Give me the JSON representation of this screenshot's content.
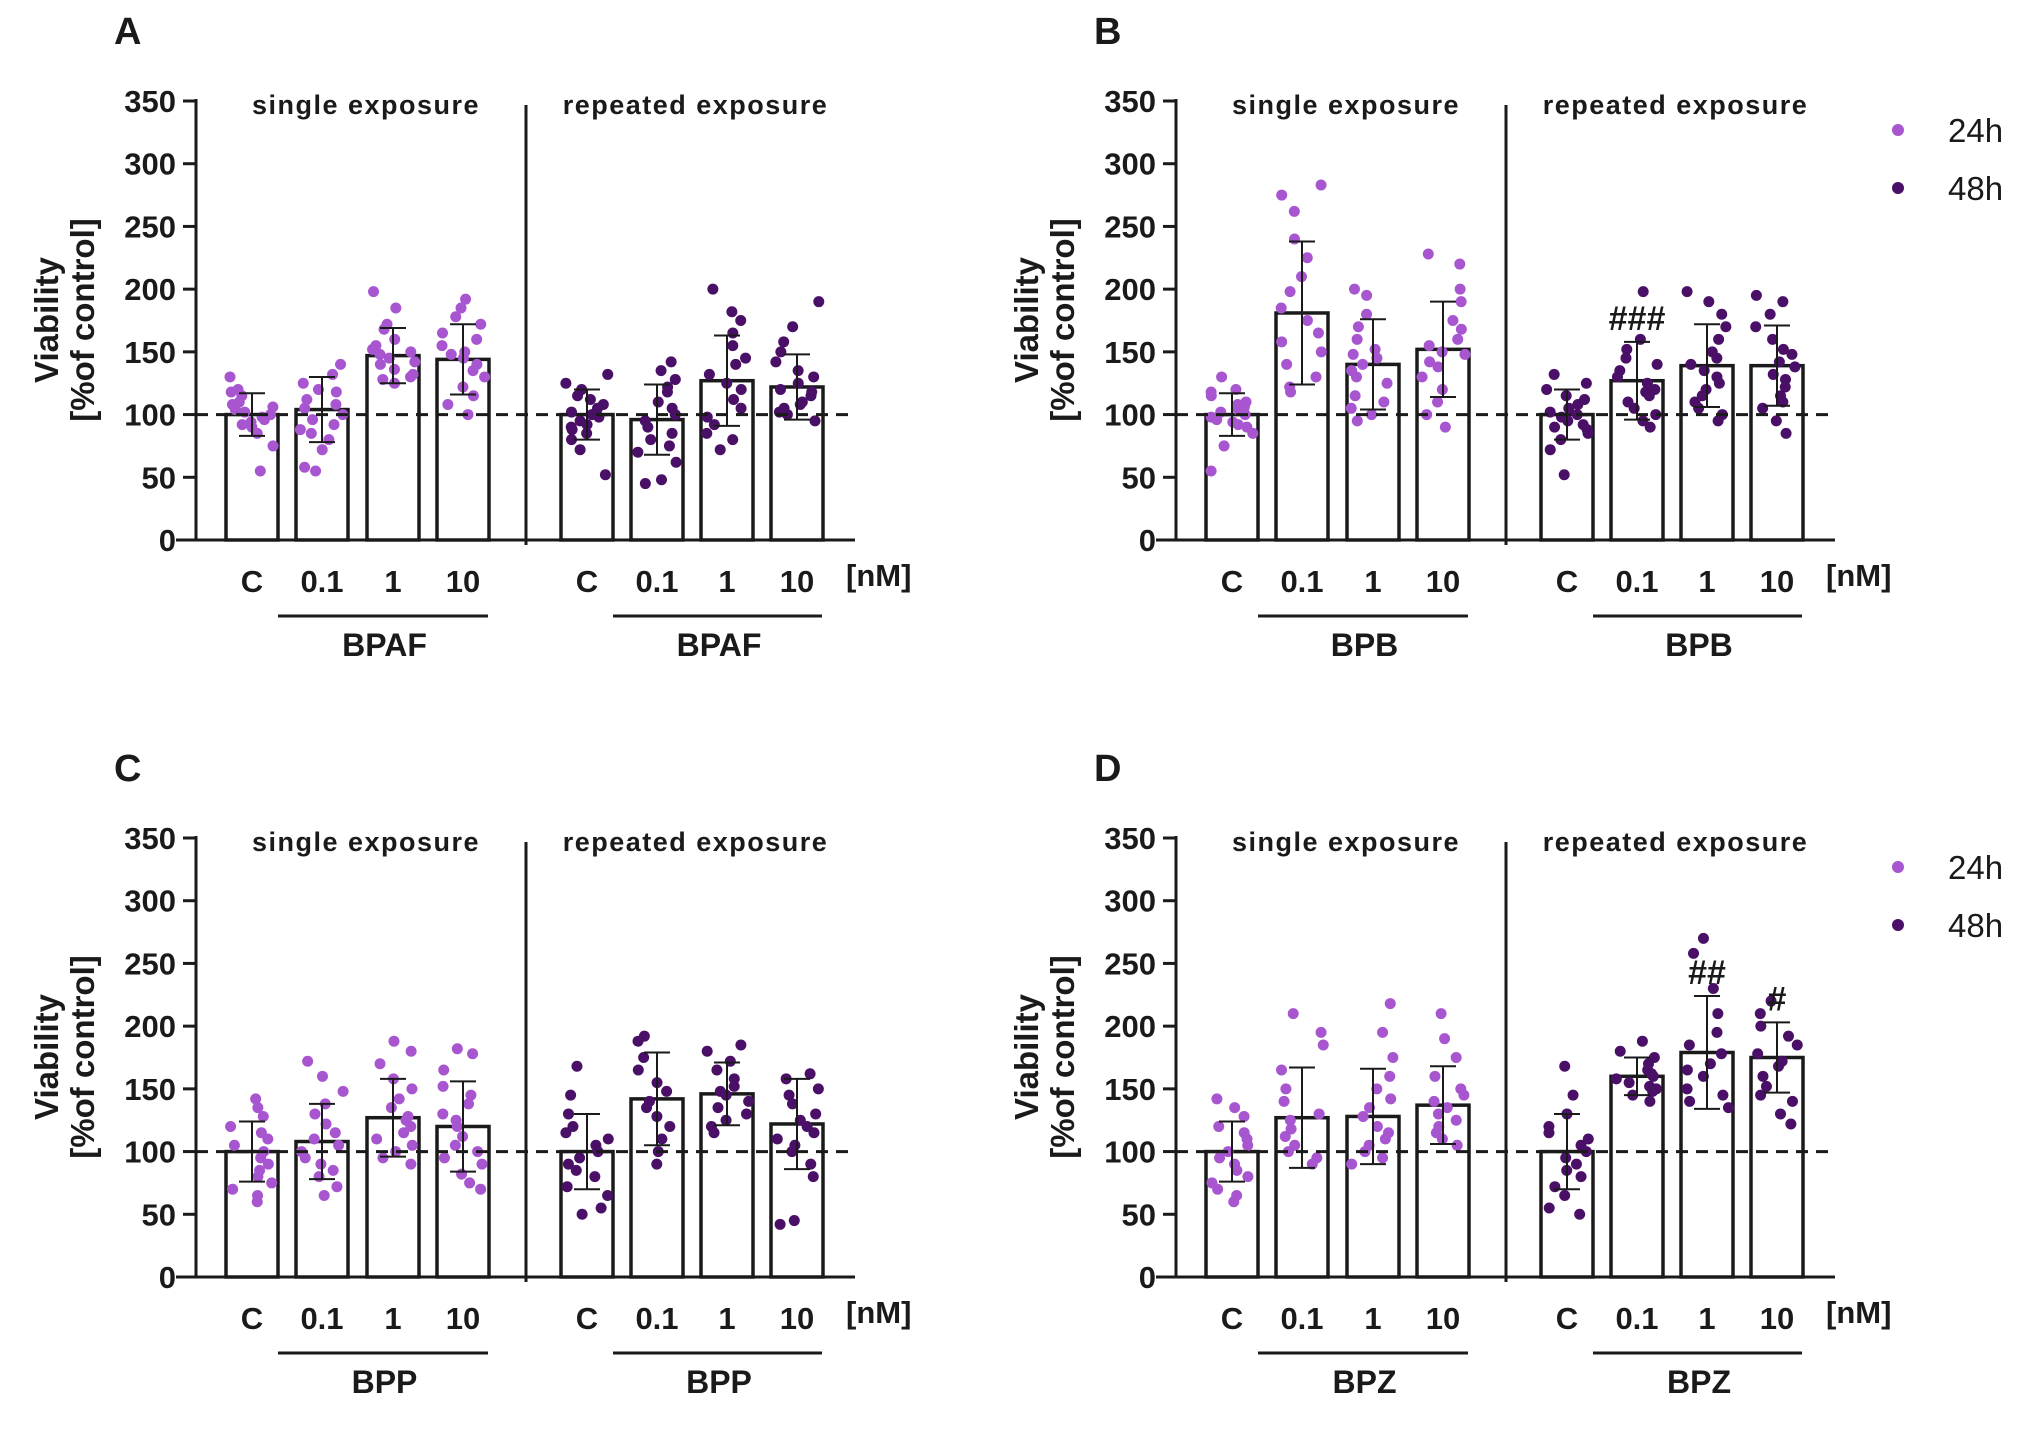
{
  "figure": {
    "legend": [
      {
        "label": "24h",
        "color": "#a855d0"
      },
      {
        "label": "48h",
        "color": "#4a0f66"
      }
    ]
  },
  "chart_data": [
    {
      "type": "bar",
      "panel": "A",
      "ylabel_line1": "Viability",
      "ylabel_line2": "[%of control]",
      "ylim": [
        0,
        350
      ],
      "yticks": [
        "0",
        "50",
        "100",
        "150",
        "200",
        "250",
        "300",
        "350"
      ],
      "unit": "[nM]",
      "reference_line": 100,
      "sections": [
        {
          "title": "single exposure",
          "group": "BPAF",
          "timepoint": "24h",
          "categories": [
            "C",
            "0.1",
            "1",
            "10"
          ],
          "means": [
            100,
            104,
            147,
            144
          ],
          "sd": [
            17,
            26,
            22,
            28
          ],
          "sig": [
            "",
            "",
            "",
            ""
          ],
          "points": [
            [
              130,
              120,
              118,
              115,
              110,
              108,
              106,
              104,
              102,
              100,
              98,
              96,
              94,
              92,
              90,
              85,
              75,
              55
            ],
            [
              140,
              132,
              125,
              120,
              118,
              112,
              108,
              105,
              100,
              96,
              92,
              88,
              85,
              80,
              72,
              58,
              55
            ],
            [
              198,
              185,
              172,
              168,
              160,
              155,
              152,
              150,
              148,
              145,
              142,
              140,
              136,
              132,
              130,
              128,
              125
            ],
            [
              192,
              185,
              178,
              172,
              165,
              160,
              155,
              150,
              148,
              145,
              140,
              135,
              130,
              122,
              115,
              108,
              100
            ]
          ]
        },
        {
          "title": "repeated exposure",
          "group": "BPAF",
          "timepoint": "48h",
          "categories": [
            "C",
            "0.1",
            "1",
            "10"
          ],
          "means": [
            100,
            96,
            127,
            122
          ],
          "sd": [
            20,
            28,
            36,
            26
          ],
          "sig": [
            "",
            "",
            "",
            ""
          ],
          "points": [
            [
              132,
              125,
              120,
              115,
              112,
              108,
              105,
              102,
              100,
              98,
              95,
              92,
              90,
              88,
              85,
              80,
              72,
              52
            ],
            [
              142,
              135,
              128,
              122,
              118,
              110,
              105,
              100,
              95,
              90,
              85,
              80,
              75,
              70,
              62,
              48,
              45
            ],
            [
              200,
              182,
              175,
              165,
              155,
              145,
              140,
              132,
              125,
              120,
              112,
              105,
              98,
              92,
              85,
              80,
              72
            ],
            [
              190,
              170,
              158,
              150,
              142,
              135,
              130,
              125,
              120,
              118,
              115,
              110,
              108,
              105,
              102,
              100,
              95
            ]
          ]
        }
      ]
    },
    {
      "type": "bar",
      "panel": "B",
      "ylabel_line1": "Viability",
      "ylabel_line2": "[%of control]",
      "ylim": [
        0,
        350
      ],
      "yticks": [
        "0",
        "50",
        "100",
        "150",
        "200",
        "250",
        "300",
        "350"
      ],
      "unit": "[nM]",
      "reference_line": 100,
      "sections": [
        {
          "title": "single exposure",
          "group": "BPB",
          "timepoint": "24h",
          "categories": [
            "C",
            "0.1",
            "1",
            "10"
          ],
          "means": [
            100,
            181,
            140,
            152
          ],
          "sd": [
            17,
            57,
            36,
            38
          ],
          "sig": [
            "",
            "",
            "",
            ""
          ],
          "points": [
            [
              130,
              120,
              118,
              115,
              110,
              108,
              106,
              104,
              102,
              100,
              98,
              96,
              94,
              92,
              90,
              85,
              75,
              55
            ],
            [
              283,
              275,
              262,
              240,
              225,
              210,
              198,
              185,
              175,
              165,
              158,
              150,
              140,
              130,
              122,
              118
            ],
            [
              200,
              195,
              180,
              170,
              160,
              152,
              148,
              145,
              140,
              135,
              130,
              125,
              115,
              110,
              105,
              100,
              95
            ],
            [
              228,
              220,
              200,
              190,
              175,
              168,
              160,
              155,
              150,
              148,
              142,
              138,
              130,
              120,
              110,
              100,
              90
            ]
          ]
        },
        {
          "title": "repeated exposure",
          "group": "BPB",
          "timepoint": "48h",
          "categories": [
            "C",
            "0.1",
            "1",
            "10"
          ],
          "means": [
            100,
            127,
            139,
            139
          ],
          "sd": [
            20,
            31,
            33,
            32
          ],
          "sig": [
            "",
            "###",
            "",
            ""
          ],
          "points": [
            [
              132,
              125,
              120,
              115,
              112,
              108,
              105,
              102,
              100,
              98,
              95,
              92,
              90,
              88,
              85,
              80,
              72,
              52
            ],
            [
              198,
              160,
              152,
              145,
              140,
              135,
              130,
              125,
              120,
              118,
              115,
              110,
              105,
              100,
              95,
              90
            ],
            [
              198,
              190,
              180,
              170,
              160,
              150,
              145,
              140,
              135,
              130,
              125,
              120,
              115,
              110,
              105,
              100,
              95
            ],
            [
              195,
              190,
              180,
              170,
              160,
              152,
              148,
              142,
              138,
              132,
              128,
              122,
              115,
              110,
              105,
              95,
              85
            ]
          ]
        }
      ]
    },
    {
      "type": "bar",
      "panel": "C",
      "ylabel_line1": "Viability",
      "ylabel_line2": "[%of control]",
      "ylim": [
        0,
        350
      ],
      "yticks": [
        "0",
        "50",
        "100",
        "150",
        "200",
        "250",
        "300",
        "350"
      ],
      "unit": "[nM]",
      "reference_line": 100,
      "sections": [
        {
          "title": "single exposure",
          "group": "BPP",
          "timepoint": "24h",
          "categories": [
            "C",
            "0.1",
            "1",
            "10"
          ],
          "means": [
            100,
            108,
            127,
            120
          ],
          "sd": [
            24,
            30,
            31,
            36
          ],
          "sig": [
            "",
            "",
            "",
            ""
          ],
          "points": [
            [
              142,
              135,
              128,
              120,
              115,
              110,
              105,
              100,
              95,
              90,
              85,
              80,
              75,
              70,
              65,
              60
            ],
            [
              172,
              160,
              148,
              138,
              130,
              122,
              115,
              110,
              105,
              100,
              95,
              90,
              85,
              80,
              72,
              65
            ],
            [
              188,
              180,
              170,
              158,
              150,
              142,
              135,
              128,
              125,
              120,
              115,
              110,
              105,
              100,
              95,
              90
            ],
            [
              182,
              178,
              165,
              152,
              145,
              138,
              130,
              125,
              120,
              112,
              105,
              100,
              95,
              90,
              82,
              75,
              70
            ]
          ]
        },
        {
          "title": "repeated exposure",
          "group": "BPP",
          "timepoint": "48h",
          "categories": [
            "C",
            "0.1",
            "1",
            "10"
          ],
          "means": [
            100,
            142,
            146,
            122
          ],
          "sd": [
            30,
            37,
            25,
            36
          ],
          "sig": [
            "",
            "",
            "",
            ""
          ],
          "points": [
            [
              168,
              145,
              130,
              120,
              115,
              110,
              105,
              100,
              95,
              90,
              85,
              80,
              72,
              65,
              55,
              50
            ],
            [
              192,
              188,
              175,
              165,
              155,
              148,
              140,
              135,
              128,
              120,
              110,
              100,
              90
            ],
            [
              185,
              180,
              172,
              165,
              158,
              152,
              148,
              145,
              140,
              135,
              130,
              125,
              120,
              115
            ],
            [
              162,
              158,
              150,
              145,
              138,
              130,
              125,
              120,
              115,
              110,
              105,
              100,
              90,
              80,
              45,
              42
            ]
          ]
        }
      ]
    },
    {
      "type": "bar",
      "panel": "D",
      "ylabel_line1": "Viability",
      "ylabel_line2": "[%of control]",
      "ylim": [
        0,
        350
      ],
      "yticks": [
        "0",
        "50",
        "100",
        "150",
        "200",
        "250",
        "300",
        "350"
      ],
      "unit": "[nM]",
      "reference_line": 100,
      "sections": [
        {
          "title": "single exposure",
          "group": "BPZ",
          "timepoint": "24h",
          "categories": [
            "C",
            "0.1",
            "1",
            "10"
          ],
          "means": [
            100,
            127,
            128,
            137
          ],
          "sd": [
            24,
            40,
            38,
            31
          ],
          "sig": [
            "",
            "",
            "",
            ""
          ],
          "points": [
            [
              142,
              135,
              128,
              120,
              115,
              110,
              105,
              100,
              95,
              90,
              85,
              80,
              75,
              70,
              65,
              60
            ],
            [
              210,
              195,
              185,
              165,
              150,
              140,
              130,
              125,
              118,
              112,
              105,
              100,
              95,
              90
            ],
            [
              218,
              195,
              175,
              160,
              150,
              142,
              135,
              128,
              120,
              115,
              110,
              105,
              100,
              95,
              90
            ],
            [
              210,
              190,
              175,
              160,
              150,
              145,
              140,
              135,
              130,
              125,
              120,
              115,
              110,
              105
            ]
          ]
        },
        {
          "title": "repeated exposure",
          "group": "BPZ",
          "timepoint": "48h",
          "categories": [
            "C",
            "0.1",
            "1",
            "10"
          ],
          "means": [
            100,
            160,
            179,
            175
          ],
          "sd": [
            30,
            15,
            45,
            28
          ],
          "sig": [
            "",
            "",
            "##",
            "#"
          ],
          "points": [
            [
              168,
              145,
              130,
              120,
              115,
              110,
              105,
              100,
              95,
              90,
              85,
              80,
              72,
              65,
              55,
              50
            ],
            [
              188,
              180,
              175,
              170,
              165,
              162,
              160,
              158,
              155,
              152,
              150,
              148,
              145,
              140
            ],
            [
              270,
              258,
              230,
              210,
              195,
              185,
              178,
              170,
              165,
              160,
              150,
              145,
              140,
              135
            ],
            [
              220,
              210,
              200,
              192,
              185,
              178,
              172,
              168,
              160,
              152,
              145,
              140,
              130,
              122
            ]
          ]
        }
      ]
    }
  ]
}
